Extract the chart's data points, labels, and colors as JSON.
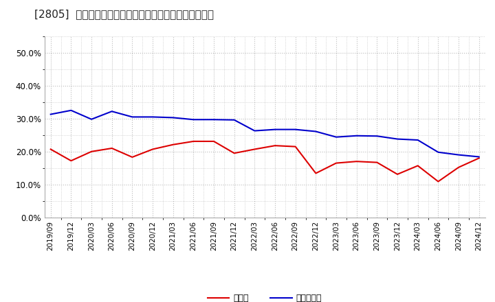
{
  "title": "[2805]  現領金、有利子負債の総資産に対する比率の推移",
  "x_labels": [
    "2019/09",
    "2019/12",
    "2020/03",
    "2020/06",
    "2020/09",
    "2020/12",
    "2021/03",
    "2021/06",
    "2021/09",
    "2021/12",
    "2022/03",
    "2022/06",
    "2022/09",
    "2022/12",
    "2023/03",
    "2023/06",
    "2023/09",
    "2023/12",
    "2024/03",
    "2024/06",
    "2024/09",
    "2024/12"
  ],
  "cash": [
    0.207,
    0.172,
    0.2,
    0.21,
    0.183,
    0.207,
    0.221,
    0.231,
    0.231,
    0.195,
    0.207,
    0.218,
    0.215,
    0.134,
    0.165,
    0.17,
    0.167,
    0.131,
    0.157,
    0.109,
    0.152,
    0.18
  ],
  "debt": [
    0.313,
    0.325,
    0.298,
    0.322,
    0.305,
    0.305,
    0.303,
    0.297,
    0.297,
    0.296,
    0.263,
    0.267,
    0.267,
    0.261,
    0.244,
    0.248,
    0.247,
    0.238,
    0.235,
    0.198,
    0.19,
    0.184
  ],
  "cash_color": "#dd0000",
  "debt_color": "#0000cc",
  "bg_color": "#ffffff",
  "plot_bg_color": "#ffffff",
  "grid_color": "#bbbbbb",
  "legend_cash": "現領金",
  "legend_debt": "有利子負債",
  "ylim": [
    0.0,
    0.55
  ],
  "yticks": [
    0.0,
    0.1,
    0.2,
    0.3,
    0.4,
    0.5
  ],
  "line_width": 1.5,
  "title_fontsize": 11,
  "tick_fontsize": 7.5,
  "legend_fontsize": 9
}
